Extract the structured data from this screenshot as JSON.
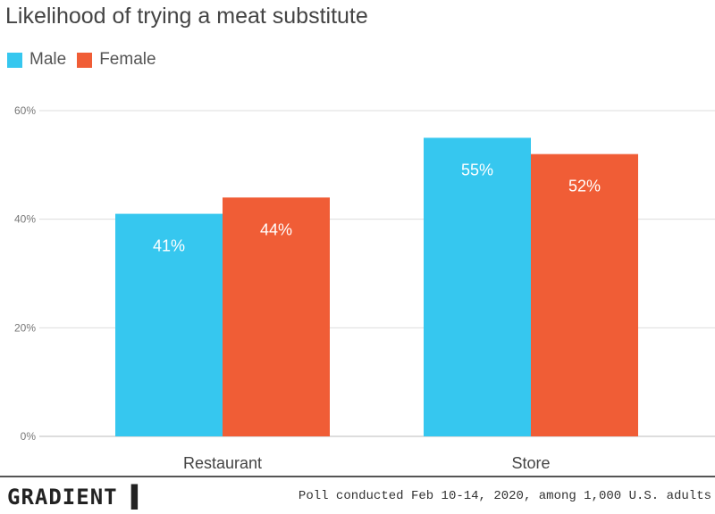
{
  "chart_data": {
    "type": "bar",
    "title": "Likelihood of trying a meat substitute",
    "categories": [
      "Restaurant",
      "Store"
    ],
    "series": [
      {
        "name": "Male",
        "color": "#36c7ef",
        "values": [
          41,
          55
        ],
        "labels": [
          "41%",
          "55%"
        ]
      },
      {
        "name": "Female",
        "color": "#f05d36",
        "values": [
          44,
          52
        ],
        "labels": [
          "44%",
          "52%"
        ]
      }
    ],
    "ylim": [
      0,
      60
    ],
    "yticks": [
      0,
      20,
      40,
      60
    ],
    "ytick_labels": [
      "0%",
      "20%",
      "40%",
      "60%"
    ],
    "grid": true,
    "legend_position": "top-left"
  },
  "footer": {
    "brand": "GRADIENT",
    "source": "Poll conducted Feb 10-14, 2020, among 1,000 U.S. adults"
  }
}
